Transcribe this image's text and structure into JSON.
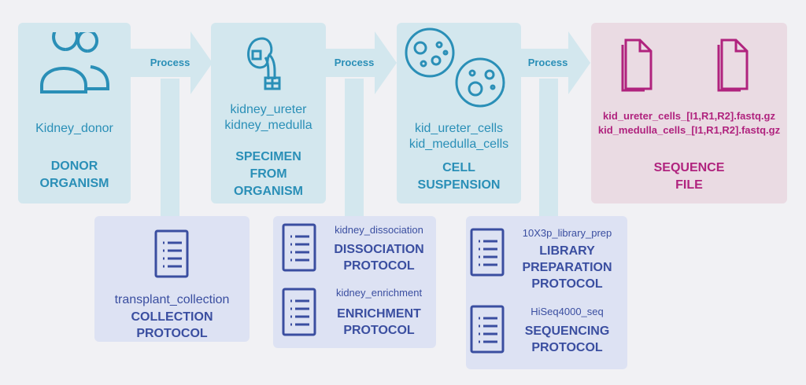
{
  "colors": {
    "entity_bg": "#d3e7ee",
    "entity_text": "#2a8fb7",
    "sequence_bg": "#eadbe3",
    "sequence_text": "#b0237e",
    "protocol_bg": "#dde2f3",
    "protocol_text": "#3a4ea0"
  },
  "arrows": [
    {
      "label": "Process"
    },
    {
      "label": "Process"
    },
    {
      "label": "Process"
    }
  ],
  "entities": {
    "donor": {
      "icon": "people-icon",
      "name": "Kidney_donor",
      "title_line1": "DONOR",
      "title_line2": "ORGANISM"
    },
    "specimen": {
      "icon": "kidney-icon",
      "name_line1": "kidney_ureter",
      "name_line2": "kidney_medulla",
      "title_line1": "SPECIMEN",
      "title_line2": "FROM",
      "title_line3": "ORGANISM"
    },
    "cells": {
      "icon": "petri-dish-icon",
      "name_line1": "kid_ureter_cells",
      "name_line2": "kid_medulla_cells",
      "title_line1": "CELL",
      "title_line2": "SUSPENSION"
    },
    "sequence": {
      "icon": "file-icon",
      "name_line1": "kid_ureter_cells_[I1,R1,R2].fastq.gz",
      "name_line2": "kid_medulla_cells_[I1,R1,R2].fastq.gz",
      "title_line1": "SEQUENCE",
      "title_line2": "FILE"
    }
  },
  "protocols": {
    "collection": {
      "icon": "document-list-icon",
      "name": "transplant_collection",
      "title_line1": "COLLECTION",
      "title_line2": "PROTOCOL"
    },
    "dissociation": {
      "icon": "document-list-icon",
      "name": "kidney_dissociation",
      "title_line1": "DISSOCIATION",
      "title_line2": "PROTOCOL"
    },
    "enrichment": {
      "icon": "document-list-icon",
      "name": "kidney_enrichment",
      "title_line1": "ENRICHMENT",
      "title_line2": "PROTOCOL"
    },
    "library": {
      "icon": "document-list-icon",
      "name": "10X3p_library_prep",
      "title_line1": "LIBRARY",
      "title_line2": "PREPARATION",
      "title_line3": "PROTOCOL"
    },
    "sequencing": {
      "icon": "document-list-icon",
      "name": "HiSeq4000_seq",
      "title_line1": "SEQUENCING",
      "title_line2": "PROTOCOL"
    }
  }
}
